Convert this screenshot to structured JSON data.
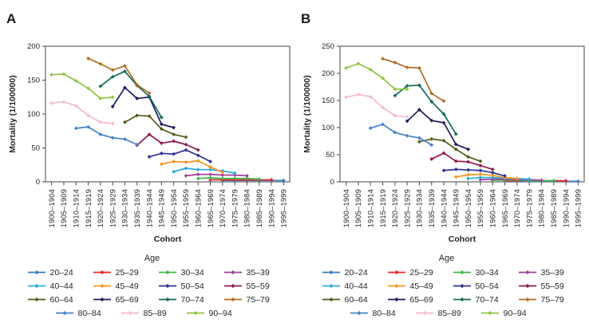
{
  "panels": [
    {
      "label": "A"
    },
    {
      "label": "B"
    }
  ],
  "chart_data": [
    {
      "type": "line",
      "panel": "A",
      "title": "",
      "xlabel": "Cohort",
      "ylabel": "Mortality (1/100000)",
      "ylim": [
        0,
        200
      ],
      "yticks": [
        0,
        50,
        100,
        150,
        200
      ],
      "grid": false,
      "legend_title": "Age",
      "legend_position": "bottom",
      "marker": "diamond",
      "categories": [
        "1900–1904",
        "1905–1909",
        "1910–1914",
        "1915–1919",
        "1920–1924",
        "1925–1929",
        "1930–1934",
        "1935–1939",
        "1940–1944",
        "1945–1949",
        "1950–1954",
        "1955–1959",
        "1960–1964",
        "1965–1969",
        "1970–1974",
        "1975–1979",
        "1980–1984",
        "1985–1989",
        "1990–1994",
        "1995–1999"
      ],
      "series": [
        {
          "name": "20–24",
          "color": "#3a7abd",
          "start_index": 14,
          "values": [
            2,
            2,
            2,
            2,
            2,
            2
          ]
        },
        {
          "name": "25–29",
          "color": "#ec2427",
          "start_index": 13,
          "values": [
            3,
            3,
            3,
            3,
            3,
            3
          ]
        },
        {
          "name": "30–34",
          "color": "#41b649",
          "start_index": 12,
          "values": [
            5,
            6,
            5,
            5,
            5,
            4
          ]
        },
        {
          "name": "35–39",
          "color": "#a0409a",
          "start_index": 11,
          "values": [
            9,
            11,
            11,
            10,
            10,
            9
          ]
        },
        {
          "name": "40–44",
          "color": "#27aae1",
          "start_index": 10,
          "values": [
            15,
            20,
            18,
            18,
            16,
            13
          ]
        },
        {
          "name": "45–49",
          "color": "#f7941d",
          "start_index": 9,
          "values": [
            26,
            30,
            29,
            31,
            22,
            14
          ]
        },
        {
          "name": "50–54",
          "color": "#2e3192",
          "start_index": 8,
          "values": [
            37,
            42,
            41,
            47,
            39,
            30
          ]
        },
        {
          "name": "55–59",
          "color": "#8e1a4e",
          "start_index": 7,
          "values": [
            54,
            70,
            57,
            60,
            55,
            47
          ]
        },
        {
          "name": "60–64",
          "color": "#55591c",
          "start_index": 6,
          "values": [
            88,
            98,
            97,
            78,
            70,
            66
          ]
        },
        {
          "name": "65–69",
          "color": "#1f1a5e",
          "start_index": 5,
          "values": [
            111,
            139,
            123,
            125,
            85,
            80
          ]
        },
        {
          "name": "70–74",
          "color": "#156a5a",
          "start_index": 4,
          "values": [
            141,
            155,
            163,
            142,
            126,
            95
          ]
        },
        {
          "name": "75–79",
          "color": "#b16d22",
          "start_index": 3,
          "values": [
            182,
            174,
            165,
            171,
            143,
            131
          ]
        },
        {
          "name": "80–84",
          "color": "#4583c5",
          "start_index": 2,
          "values": [
            79,
            81,
            70,
            65,
            63,
            55
          ]
        },
        {
          "name": "85–89",
          "color": "#f7b8d4",
          "start_index": 0,
          "values": [
            116,
            118,
            112,
            98,
            88,
            86
          ]
        },
        {
          "name": "90–94",
          "color": "#8dc63f",
          "start_index": 0,
          "values": [
            158,
            159,
            149,
            138,
            123,
            125
          ]
        }
      ]
    },
    {
      "type": "line",
      "panel": "B",
      "title": "",
      "xlabel": "Cohort",
      "ylabel": "Mortality (1/100000)",
      "ylim": [
        0,
        250
      ],
      "yticks": [
        0,
        50,
        100,
        150,
        200,
        250
      ],
      "grid": false,
      "legend_title": "Age",
      "legend_position": "bottom",
      "marker": "diamond",
      "categories": [
        "1900–1904",
        "1905–1909",
        "1910–1914",
        "1915–1919",
        "1920–1924",
        "1925–1929",
        "1930–1934",
        "1935–1939",
        "1940–1944",
        "1945–1949",
        "1950–1954",
        "1955–1959",
        "1960–1964",
        "1965–1969",
        "1970–1974",
        "1975–1979",
        "1980–1984",
        "1985–1989",
        "1990–1994",
        "1995–1999"
      ],
      "series": [
        {
          "name": "20–24",
          "color": "#3a7abd",
          "start_index": 14,
          "values": [
            1,
            1,
            1,
            1,
            1,
            1
          ]
        },
        {
          "name": "25–29",
          "color": "#ec2427",
          "start_index": 13,
          "values": [
            2,
            2,
            2,
            2,
            2,
            2
          ]
        },
        {
          "name": "30–34",
          "color": "#41b649",
          "start_index": 12,
          "values": [
            3,
            3,
            3,
            2,
            2,
            2
          ]
        },
        {
          "name": "35–39",
          "color": "#a0409a",
          "start_index": 11,
          "values": [
            4,
            5,
            5,
            4,
            4,
            3
          ]
        },
        {
          "name": "40–44",
          "color": "#27aae1",
          "start_index": 10,
          "values": [
            6,
            8,
            8,
            7,
            6,
            5
          ]
        },
        {
          "name": "45–49",
          "color": "#f7941d",
          "start_index": 9,
          "values": [
            9,
            13,
            14,
            12,
            8,
            6
          ]
        },
        {
          "name": "50–54",
          "color": "#2e3192",
          "start_index": 8,
          "values": [
            21,
            23,
            22,
            21,
            17,
            11
          ]
        },
        {
          "name": "55–59",
          "color": "#8e1a4e",
          "start_index": 7,
          "values": [
            42,
            53,
            38,
            37,
            30,
            23
          ]
        },
        {
          "name": "60–64",
          "color": "#55591c",
          "start_index": 6,
          "values": [
            74,
            79,
            76,
            60,
            46,
            38
          ]
        },
        {
          "name": "65–69",
          "color": "#1f1a5e",
          "start_index": 5,
          "values": [
            112,
            133,
            113,
            109,
            69,
            60
          ]
        },
        {
          "name": "70–74",
          "color": "#156a5a",
          "start_index": 4,
          "values": [
            159,
            177,
            178,
            148,
            125,
            88
          ]
        },
        {
          "name": "75–79",
          "color": "#b16d22",
          "start_index": 3,
          "values": [
            227,
            220,
            211,
            210,
            163,
            149
          ]
        },
        {
          "name": "80–84",
          "color": "#4583c5",
          "start_index": 2,
          "values": [
            99,
            106,
            91,
            85,
            81,
            68
          ]
        },
        {
          "name": "85–89",
          "color": "#f7b8d4",
          "start_index": 0,
          "values": [
            156,
            161,
            157,
            137,
            122,
            120
          ]
        },
        {
          "name": "90–94",
          "color": "#8dc63f",
          "start_index": 0,
          "values": [
            210,
            218,
            207,
            191,
            171,
            171
          ]
        }
      ]
    }
  ]
}
